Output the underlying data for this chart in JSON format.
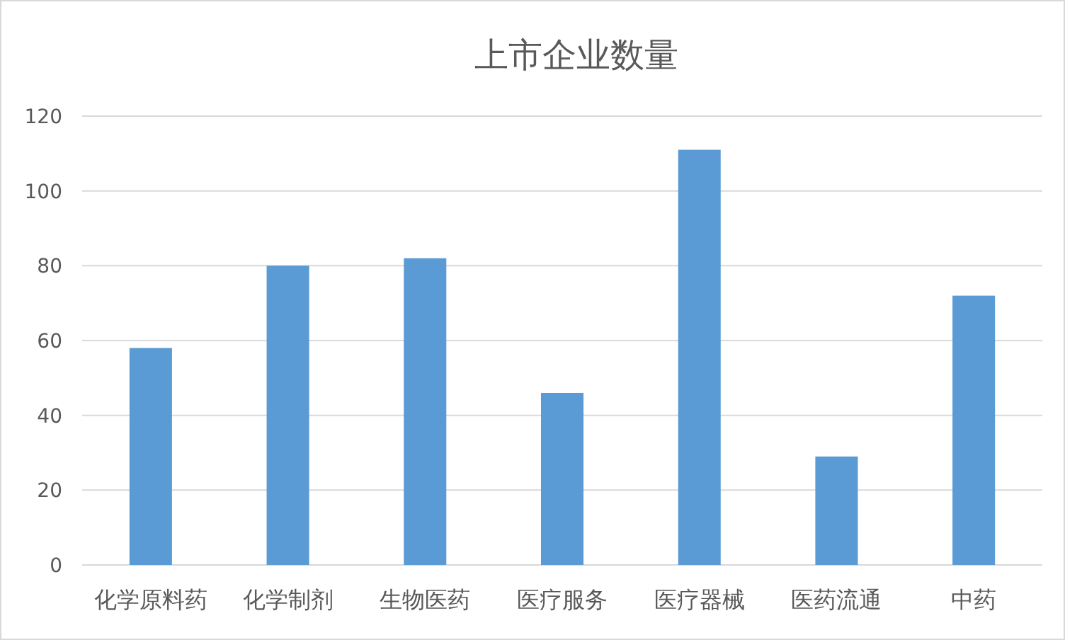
{
  "chart_data": {
    "type": "bar",
    "title": "上市企业数量",
    "categories": [
      "化学原料药",
      "化学制剂",
      "生物医药",
      "医疗服务",
      "医疗器械",
      "医药流通",
      "中药"
    ],
    "values": [
      58,
      80,
      82,
      46,
      111,
      29,
      72
    ],
    "color": "#5b9bd5",
    "ylim": [
      0,
      120
    ],
    "yticks": [
      0,
      20,
      40,
      60,
      80,
      100,
      120
    ],
    "grid": "y"
  }
}
